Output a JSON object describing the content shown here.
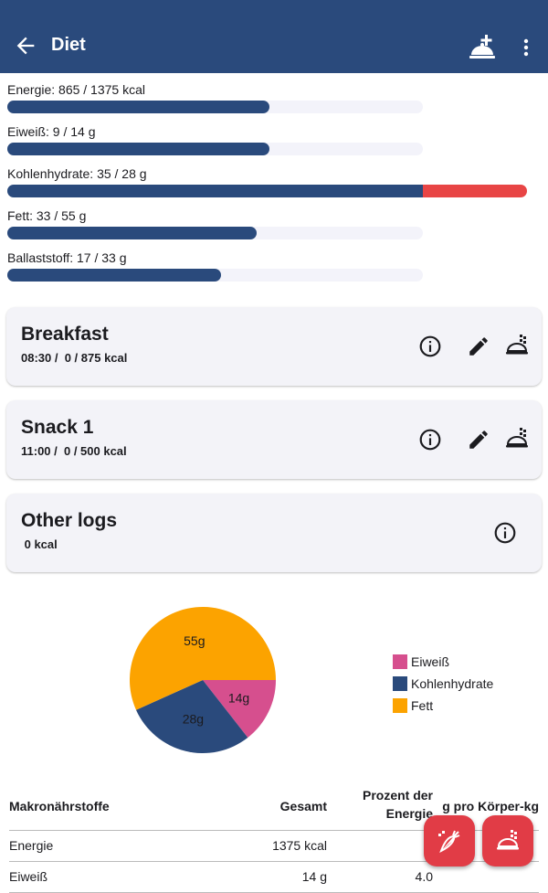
{
  "appbar": {
    "title": "Diet"
  },
  "goals": [
    {
      "label": "Energie: 865 / 1375 kcal",
      "fraction": 0.63,
      "over": 0
    },
    {
      "label": "Eiweiß: 9 / 14 g",
      "fraction": 0.63,
      "over": 0
    },
    {
      "label": "Kohlenhydrate: 35 / 28 g",
      "fraction": 1.0,
      "over": 0.25
    },
    {
      "label": "Fett: 33 / 55 g",
      "fraction": 0.6,
      "over": 0
    },
    {
      "label": "Ballaststoff: 17 / 33 g",
      "fraction": 0.515,
      "over": 0
    }
  ],
  "meals": [
    {
      "name": "Breakfast",
      "sub": "08:30 /  0 / 875 kcal"
    },
    {
      "name": "Snack 1",
      "sub": "11:00 /  0 / 500 kcal"
    }
  ],
  "other_logs": {
    "name": "Other logs",
    "sub": " 0 kcal"
  },
  "chart_data": {
    "type": "pie",
    "labels": [
      "Eiweiß",
      "Kohlenhydrate",
      "Fett"
    ],
    "values": [
      14,
      28,
      55
    ],
    "slice_labels": [
      "14g",
      "28g",
      "55g"
    ],
    "colors": [
      "#d64f8e",
      "#2a4a7c",
      "#fca300"
    ],
    "legend": "right"
  },
  "table": {
    "headers": [
      "Makronährstoffe",
      "Gesamt",
      "Prozent der Energie",
      "g pro Körper-kg"
    ],
    "rows": [
      [
        "Energie",
        "1375 kcal",
        "",
        ""
      ],
      [
        "Eiweiß",
        "14 g",
        "4.0",
        ""
      ]
    ]
  },
  "colors": {
    "primary": "#2a4a7c",
    "accent": "#e13c46",
    "over": "#e84545",
    "track": "#f3f3fa"
  }
}
